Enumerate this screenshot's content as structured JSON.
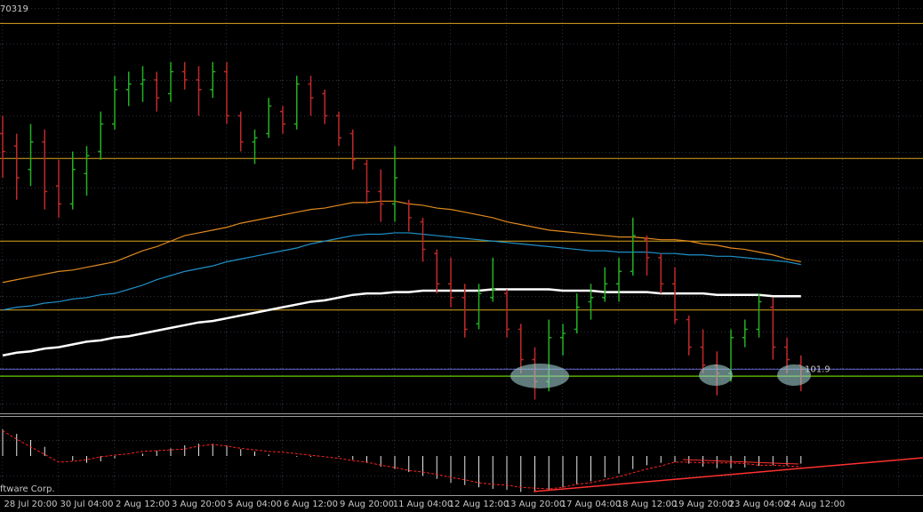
{
  "chart_data": {
    "type": "ohlc",
    "header_text": "70319",
    "footer_text": "ftware Corp.",
    "ylim": [
      101.6,
      104.6
    ],
    "up_color": "#22b022",
    "down_color": "#c02828",
    "categories": [
      null,
      null,
      "28 Jul 20:00",
      null,
      null,
      null,
      "30 Jul 04:00",
      null,
      null,
      null,
      "2 Aug 12:00",
      null,
      null,
      null,
      "3 Aug 20:00",
      null,
      null,
      null,
      "5 Aug 04:00",
      null,
      null,
      null,
      "6 Aug 12:00",
      null,
      null,
      null,
      "9 Aug 20:00",
      null,
      null,
      null,
      "11 Aug 04:00",
      null,
      null,
      null,
      "12 Aug 12:00",
      null,
      null,
      null,
      "13 Aug 20:00",
      null,
      null,
      null,
      "17 Aug 04:00",
      null,
      null,
      null,
      "18 Aug 12:00",
      null,
      null,
      null,
      "19 Aug 20:00",
      null,
      null,
      null,
      "23 Aug 04:00",
      null,
      null,
      null,
      "24 Aug 12:00",
      null,
      null,
      null,
      null,
      null,
      null,
      null
    ],
    "open": [
      103.63,
      103.54,
      103.37,
      103.57,
      103.25,
      103.12,
      103.34,
      103.5,
      103.7,
      103.95,
      103.99,
      104.02,
      103.92,
      104.08,
      104.02,
      103.95,
      104.08,
      103.76,
      103.57,
      103.63,
      103.79,
      103.7,
      103.99,
      103.92,
      103.76,
      103.63,
      103.41,
      103.21,
      103.12,
      103.12,
      102.99,
      102.76,
      102.54,
      102.44,
      102.25,
      102.44,
      102.47,
      102.21,
      101.99,
      101.83,
      102.15,
      102.21,
      102.41,
      102.44,
      102.54,
      102.63,
      102.86,
      102.73,
      102.54,
      102.28,
      102.08,
      101.95,
      101.89,
      102.15,
      102.21,
      102.37,
      102.08,
      101.95,
      null,
      null,
      null,
      null,
      null,
      null,
      null,
      null
    ],
    "high": [
      103.76,
      103.63,
      103.7,
      103.66,
      103.44,
      103.5,
      103.54,
      103.79,
      104.05,
      104.08,
      104.12,
      104.08,
      104.15,
      104.15,
      104.12,
      104.15,
      104.15,
      103.79,
      103.66,
      103.89,
      103.83,
      104.05,
      104.05,
      103.95,
      103.79,
      103.66,
      103.44,
      103.37,
      103.54,
      103.15,
      103.02,
      102.79,
      102.73,
      102.54,
      102.54,
      102.73,
      102.5,
      102.25,
      102.08,
      102.28,
      102.25,
      102.47,
      102.54,
      102.66,
      102.73,
      103.02,
      102.89,
      102.76,
      102.66,
      102.31,
      102.21,
      102.05,
      102.21,
      102.28,
      102.47,
      102.44,
      102.15,
      102.02,
      null,
      null,
      null,
      null,
      null,
      null,
      null,
      null
    ],
    "low": [
      103.31,
      103.15,
      103.25,
      103.08,
      103.02,
      103.08,
      103.18,
      103.44,
      103.66,
      103.83,
      103.86,
      103.79,
      103.86,
      103.95,
      103.76,
      103.89,
      103.7,
      103.5,
      103.41,
      103.6,
      103.63,
      103.66,
      103.76,
      103.7,
      103.54,
      103.37,
      103.12,
      102.99,
      102.99,
      102.92,
      102.7,
      102.47,
      102.37,
      102.15,
      102.21,
      102.41,
      102.15,
      101.89,
      101.7,
      101.76,
      102.02,
      102.18,
      102.28,
      102.41,
      102.41,
      102.6,
      102.6,
      102.47,
      102.25,
      102.02,
      101.89,
      101.73,
      101.83,
      102.08,
      102.15,
      101.99,
      101.89,
      101.76,
      null,
      null,
      null,
      null,
      null,
      null,
      null,
      null
    ],
    "close": [
      103.5,
      103.31,
      103.57,
      103.21,
      103.12,
      103.37,
      103.47,
      103.7,
      103.95,
      103.99,
      104.02,
      103.89,
      104.08,
      104.02,
      103.95,
      104.08,
      103.76,
      103.57,
      103.6,
      103.83,
      103.7,
      103.99,
      103.89,
      103.76,
      103.6,
      103.44,
      103.21,
      103.12,
      103.31,
      103.02,
      102.79,
      102.54,
      102.44,
      102.21,
      102.47,
      102.5,
      102.21,
      101.99,
      101.83,
      102.15,
      102.18,
      102.37,
      102.44,
      102.54,
      102.63,
      102.89,
      102.73,
      102.54,
      102.28,
      102.08,
      101.95,
      101.89,
      102.15,
      102.21,
      102.41,
      102.08,
      101.99,
      101.92,
      null,
      null,
      null,
      null,
      null,
      null,
      null,
      null
    ],
    "series": [
      {
        "color": "#e08a1e",
        "values": [
          102.55,
          102.57,
          102.59,
          102.61,
          102.63,
          102.64,
          102.66,
          102.68,
          102.7,
          102.74,
          102.78,
          102.81,
          102.85,
          102.89,
          102.91,
          102.93,
          102.95,
          102.98,
          103.0,
          103.02,
          103.04,
          103.06,
          103.08,
          103.09,
          103.11,
          103.13,
          103.13,
          103.14,
          103.14,
          103.12,
          103.11,
          103.09,
          103.08,
          103.06,
          103.04,
          103.02,
          102.99,
          102.97,
          102.95,
          102.93,
          102.92,
          102.91,
          102.9,
          102.89,
          102.88,
          102.88,
          102.87,
          102.86,
          102.86,
          102.85,
          102.83,
          102.82,
          102.8,
          102.79,
          102.77,
          102.75,
          102.72,
          102.7,
          null,
          null,
          null,
          null,
          null,
          null,
          null,
          null
        ]
      },
      {
        "color": "#1e90c8",
        "values": [
          102.35,
          102.37,
          102.38,
          102.4,
          102.41,
          102.43,
          102.44,
          102.46,
          102.47,
          102.5,
          102.53,
          102.57,
          102.6,
          102.63,
          102.65,
          102.67,
          102.7,
          102.72,
          102.74,
          102.76,
          102.78,
          102.8,
          102.83,
          102.85,
          102.87,
          102.89,
          102.9,
          102.9,
          102.91,
          102.91,
          102.9,
          102.89,
          102.88,
          102.87,
          102.86,
          102.85,
          102.84,
          102.83,
          102.82,
          102.81,
          102.8,
          102.79,
          102.78,
          102.78,
          102.77,
          102.77,
          102.77,
          102.76,
          102.76,
          102.75,
          102.75,
          102.74,
          102.74,
          102.73,
          102.72,
          102.71,
          102.7,
          102.68,
          null,
          null,
          null,
          null,
          null,
          null,
          null,
          null
        ]
      },
      {
        "color": "#ffffff",
        "values": [
          102.02,
          102.04,
          102.05,
          102.07,
          102.08,
          102.1,
          102.12,
          102.13,
          102.15,
          102.16,
          102.18,
          102.2,
          102.22,
          102.24,
          102.26,
          102.27,
          102.29,
          102.31,
          102.33,
          102.35,
          102.37,
          102.39,
          102.41,
          102.42,
          102.44,
          102.46,
          102.47,
          102.47,
          102.48,
          102.48,
          102.49,
          102.49,
          102.49,
          102.49,
          102.49,
          102.5,
          102.5,
          102.5,
          102.5,
          102.5,
          102.49,
          102.49,
          102.49,
          102.48,
          102.48,
          102.48,
          102.48,
          102.47,
          102.47,
          102.47,
          102.47,
          102.46,
          102.46,
          102.46,
          102.46,
          102.45,
          102.45,
          102.45,
          null,
          null,
          null,
          null,
          null,
          null,
          null,
          null
        ]
      }
    ],
    "levels": [
      {
        "value": 104.43,
        "color": "#daa520"
      },
      {
        "value": 103.45,
        "color": "#daa520"
      },
      {
        "value": 102.85,
        "color": "#daa520"
      },
      {
        "value": 102.35,
        "color": "#daa520"
      },
      {
        "value": 101.92,
        "color": "#6060c8",
        "label": "101.9",
        "label_color": "#e020e0"
      },
      {
        "value": 101.87,
        "color": "#7fff00"
      }
    ],
    "indicator": {
      "type": "histogram",
      "ylim": [
        -0.5,
        0.5
      ],
      "color": "#e8e8e8",
      "values": [
        0.35,
        0.29,
        0.21,
        0.12,
        0,
        -0.06,
        -0.09,
        -0.07,
        -0.03,
        0,
        0.03,
        0.07,
        0.1,
        0.14,
        0.16,
        0.16,
        0.14,
        0.09,
        0.06,
        0.02,
        0,
        -0.01,
        -0.01,
        0,
        -0.01,
        -0.05,
        -0.09,
        -0.14,
        -0.17,
        -0.21,
        -0.26,
        -0.3,
        -0.35,
        -0.38,
        -0.41,
        -0.43,
        -0.44,
        -0.47,
        -0.47,
        -0.44,
        -0.41,
        -0.37,
        -0.33,
        -0.28,
        -0.23,
        -0.17,
        -0.12,
        -0.09,
        -0.08,
        -0.1,
        -0.14,
        -0.16,
        -0.16,
        -0.15,
        -0.13,
        -0.12,
        -0.12,
        -0.1,
        null,
        null,
        null,
        null,
        null,
        null,
        null,
        null
      ],
      "signal": {
        "color": "#ff2020",
        "values": [
          0.33,
          0.22,
          0.12,
          0.02,
          -0.08,
          -0.07,
          -0.05,
          -0.01,
          0.01,
          0.03,
          0.06,
          0.07,
          0.08,
          0.09,
          0.13,
          0.15,
          0.13,
          0.1,
          0.08,
          0.06,
          0.05,
          0.03,
          0.01,
          -0.01,
          -0.03,
          -0.06,
          -0.08,
          -0.12,
          -0.15,
          -0.19,
          -0.21,
          -0.24,
          -0.28,
          -0.31,
          -0.35,
          -0.37,
          -0.38,
          -0.41,
          -0.42,
          -0.43,
          -0.41,
          -0.37,
          -0.35,
          -0.31,
          -0.27,
          -0.22,
          -0.17,
          -0.13,
          -0.08,
          -0.08,
          -0.09,
          -0.09,
          -0.09,
          -0.1,
          -0.12,
          -0.12,
          -0.13,
          -0.14,
          null,
          null,
          null,
          null,
          null,
          null,
          null,
          null
        ]
      }
    }
  }
}
